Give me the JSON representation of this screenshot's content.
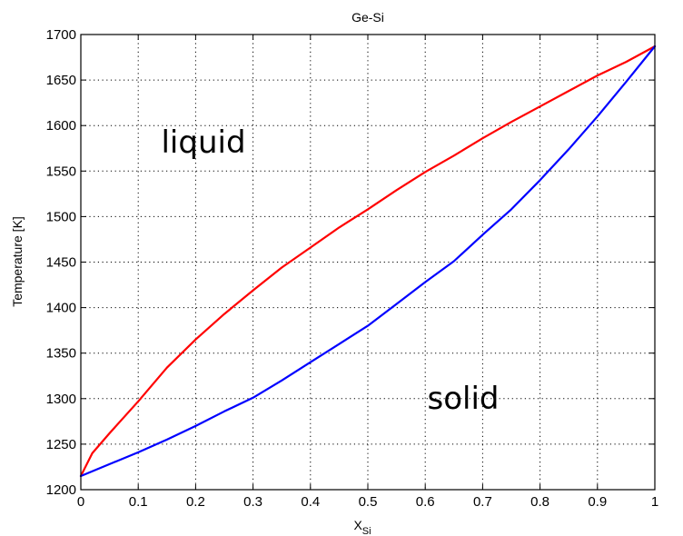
{
  "chart_data": {
    "type": "line",
    "title": "Ge-Si",
    "xlabel_main": "X",
    "xlabel_sub": "Si",
    "ylabel": "Temperature [K]",
    "xlim": [
      0,
      1
    ],
    "ylim": [
      1200,
      1700
    ],
    "xticks": [
      "0",
      "0.1",
      "0.2",
      "0.3",
      "0.4",
      "0.5",
      "0.6",
      "0.7",
      "0.8",
      "0.9",
      "1"
    ],
    "yticks": [
      "1200",
      "1250",
      "1300",
      "1350",
      "1400",
      "1450",
      "1500",
      "1550",
      "1600",
      "1650",
      "1700"
    ],
    "grid": true,
    "annotations": [
      {
        "text": "liquid",
        "x": 0.22,
        "y": 1585
      },
      {
        "text": "solid",
        "x": 0.66,
        "y": 1300
      }
    ],
    "series": [
      {
        "color": "#ff0000",
        "x": [
          0,
          0.02,
          0.05,
          0.1,
          0.15,
          0.2,
          0.25,
          0.3,
          0.35,
          0.4,
          0.45,
          0.5,
          0.55,
          0.6,
          0.65,
          0.7,
          0.75,
          0.8,
          0.85,
          0.9,
          0.95,
          1.0
        ],
        "y": [
          1215,
          1240,
          1262,
          1297,
          1334,
          1365,
          1393,
          1419,
          1444,
          1466,
          1488,
          1508,
          1529,
          1549,
          1567,
          1586,
          1604,
          1621,
          1638,
          1655,
          1670,
          1687
        ]
      },
      {
        "color": "#0000ff",
        "x": [
          0,
          0.05,
          0.1,
          0.15,
          0.2,
          0.25,
          0.3,
          0.35,
          0.4,
          0.45,
          0.5,
          0.55,
          0.6,
          0.65,
          0.7,
          0.75,
          0.8,
          0.85,
          0.9,
          0.95,
          1.0
        ],
        "y": [
          1215,
          1228,
          1241,
          1255,
          1270,
          1286,
          1301,
          1320,
          1340,
          1360,
          1380,
          1404,
          1428,
          1451,
          1480,
          1508,
          1540,
          1574,
          1610,
          1648,
          1687
        ]
      }
    ]
  }
}
